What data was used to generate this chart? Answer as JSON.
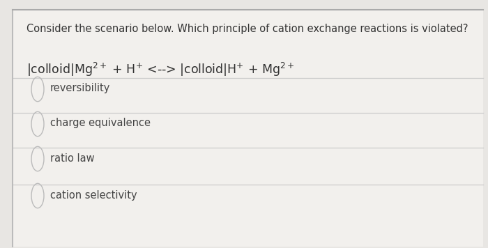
{
  "question": "Consider the scenario below. Which principle of cation exchange reactions is violated?",
  "options": [
    "reversibility",
    "charge equivalence",
    "ratio law",
    "cation selectivity"
  ],
  "bg_color": "#e8e6e3",
  "card_color": "#f2f0ed",
  "left_border_color": "#bbbbbb",
  "bottom_border_color": "#aaaaaa",
  "line_color": "#cccccc",
  "text_color": "#333333",
  "option_text_color": "#444444",
  "circle_color": "#bbbbbb",
  "question_fontsize": 10.5,
  "equation_fontsize": 12.5,
  "option_fontsize": 10.5
}
